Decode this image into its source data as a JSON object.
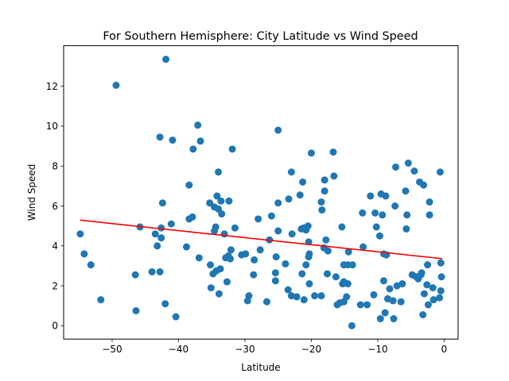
{
  "chart_data": {
    "type": "scatter",
    "title": "For Southern Hemisphere: City Latitude vs Wind Speed",
    "xlabel": "Latitude",
    "ylabel": "Wind Speed",
    "xlim": [
      -57.3,
      2.1
    ],
    "ylim": [
      -0.67,
      14.03
    ],
    "xticks": [
      -50,
      -40,
      -30,
      -20,
      -10,
      0
    ],
    "xtick_labels": [
      "−50",
      "−40",
      "−30",
      "−20",
      "−10",
      "0"
    ],
    "yticks": [
      0,
      2,
      4,
      6,
      8,
      10,
      12
    ],
    "ytick_labels": [
      "0",
      "2",
      "4",
      "6",
      "8",
      "10",
      "12"
    ],
    "grid": false,
    "colors": {
      "points": "#1f77b4",
      "regression": "#ff0000"
    },
    "regression": {
      "x": [
        -54.8,
        -0.3
      ],
      "y": [
        5.29,
        3.36
      ]
    },
    "points": [
      [
        -54.8,
        4.6
      ],
      [
        -54.2,
        3.6
      ],
      [
        -53.2,
        3.05
      ],
      [
        -51.7,
        1.3
      ],
      [
        -49.4,
        12.05
      ],
      [
        -46.5,
        2.55
      ],
      [
        -46.4,
        0.75
      ],
      [
        -45.8,
        4.95
      ],
      [
        -44,
        2.7
      ],
      [
        -43.5,
        4.6
      ],
      [
        -43.2,
        4
      ],
      [
        -42.8,
        2.7
      ],
      [
        -42.8,
        9.45
      ],
      [
        -42.6,
        4.9
      ],
      [
        -42.6,
        4.4
      ],
      [
        -42.4,
        6.15
      ],
      [
        -42,
        1.1
      ],
      [
        -41.9,
        13.35
      ],
      [
        -41.1,
        5.1
      ],
      [
        -40.9,
        9.3
      ],
      [
        -40.4,
        0.45
      ],
      [
        -38.8,
        3.95
      ],
      [
        -38.4,
        7.05
      ],
      [
        -38.4,
        5.35
      ],
      [
        -37.9,
        5.45
      ],
      [
        -37.8,
        8.85
      ],
      [
        -37.1,
        10.05
      ],
      [
        -36.9,
        3.4
      ],
      [
        -36.7,
        9.25
      ],
      [
        -35.3,
        6.15
      ],
      [
        -35.2,
        3.05
      ],
      [
        -35.1,
        1.9
      ],
      [
        -34.8,
        2.6
      ],
      [
        -34.6,
        5.95
      ],
      [
        -34.6,
        4.75
      ],
      [
        -34.4,
        4.95
      ],
      [
        -34.3,
        2.75
      ],
      [
        -34.2,
        6.5
      ],
      [
        -34,
        5.85
      ],
      [
        -34,
        7.7
      ],
      [
        -33.9,
        1.6
      ],
      [
        -33.7,
        2.85
      ],
      [
        -33.6,
        6.25
      ],
      [
        -33.5,
        5.6
      ],
      [
        -33.1,
        4.6
      ],
      [
        -32.9,
        3.4
      ],
      [
        -32.7,
        2.2
      ],
      [
        -32.5,
        3.5
      ],
      [
        -32.4,
        6.25
      ],
      [
        -32.2,
        3.35
      ],
      [
        -32.1,
        3.8
      ],
      [
        -31.9,
        8.85
      ],
      [
        -31.5,
        4.9
      ],
      [
        -30.5,
        3.55
      ],
      [
        -29.9,
        3.6
      ],
      [
        -29.6,
        1.25
      ],
      [
        -29.4,
        1.5
      ],
      [
        -28.6,
        3.3
      ],
      [
        -28.7,
        2.55
      ],
      [
        -28,
        5.35
      ],
      [
        -27.7,
        3.8
      ],
      [
        -26.7,
        1.2
      ],
      [
        -26.3,
        4.3
      ],
      [
        -26,
        5.5
      ],
      [
        -25.4,
        2.25
      ],
      [
        -25.4,
        2.65
      ],
      [
        -25.3,
        3.45
      ],
      [
        -25,
        6.15
      ],
      [
        -25,
        4.75
      ],
      [
        -25,
        9.8
      ],
      [
        -23.9,
        3.1
      ],
      [
        -23.5,
        1.8
      ],
      [
        -23.4,
        6.35
      ],
      [
        -23,
        1.5
      ],
      [
        -23,
        7.7
      ],
      [
        -22.9,
        4.6
      ],
      [
        -22.2,
        1.45
      ],
      [
        -21.7,
        6.55
      ],
      [
        -21.5,
        4.85
      ],
      [
        -21.4,
        2.6
      ],
      [
        -21.3,
        7.2
      ],
      [
        -21.1,
        4.9
      ],
      [
        -21.1,
        1.3
      ],
      [
        -20.8,
        3.05
      ],
      [
        -20.8,
        4.8
      ],
      [
        -20.5,
        5.0
      ],
      [
        -20.4,
        4.2
      ],
      [
        -20.4,
        3.45
      ],
      [
        -20.3,
        2.1
      ],
      [
        -20.3,
        3.6
      ],
      [
        -20,
        8.65
      ],
      [
        -19.5,
        1.5
      ],
      [
        -18.5,
        1.5
      ],
      [
        -18.5,
        6.2
      ],
      [
        -18.4,
        5.8
      ],
      [
        -18.1,
        3.9
      ],
      [
        -18,
        6.75
      ],
      [
        -18,
        7.3
      ],
      [
        -17.8,
        4.3
      ],
      [
        -17.6,
        2.6
      ],
      [
        -17.5,
        3.75
      ],
      [
        -16.7,
        8.7
      ],
      [
        -16.6,
        7.5
      ],
      [
        -16.3,
        2.45
      ],
      [
        -16.1,
        1.05
      ],
      [
        -15.7,
        1.15
      ],
      [
        -15.4,
        4.95
      ],
      [
        -15.3,
        2.1
      ],
      [
        -15.1,
        1.2
      ],
      [
        -15.1,
        2.2
      ],
      [
        -15.1,
        3.05
      ],
      [
        -14.7,
        1.45
      ],
      [
        -14.5,
        3.05
      ],
      [
        -14.5,
        2.1
      ],
      [
        -14.4,
        3.7
      ],
      [
        -13.9,
        0
      ],
      [
        -13.8,
        3.05
      ],
      [
        -12.6,
        1.05
      ],
      [
        -12.3,
        5.65
      ],
      [
        -12.2,
        3.95
      ],
      [
        -11.6,
        1.05
      ],
      [
        -11.1,
        6.5
      ],
      [
        -10.6,
        1.55
      ],
      [
        -10.4,
        5.65
      ],
      [
        -10.2,
        4.95
      ],
      [
        -9.7,
        4.5
      ],
      [
        -9.6,
        0.35
      ],
      [
        -9.5,
        6.6
      ],
      [
        -9.3,
        5.55
      ],
      [
        -9.1,
        2.25
      ],
      [
        -9.1,
        3.6
      ],
      [
        -8.9,
        0.65
      ],
      [
        -8.8,
        6.5
      ],
      [
        -8.7,
        3.55
      ],
      [
        -8.5,
        1.35
      ],
      [
        -8.2,
        1.85
      ],
      [
        -7.7,
        1.25
      ],
      [
        -7.6,
        0.35
      ],
      [
        -7.4,
        6
      ],
      [
        -7.3,
        7.95
      ],
      [
        -7.1,
        2
      ],
      [
        -6.5,
        1.2
      ],
      [
        -6.3,
        2.1
      ],
      [
        -5.8,
        6.75
      ],
      [
        -5.7,
        4.85
      ],
      [
        -5.6,
        5.55
      ],
      [
        -5.4,
        8.15
      ],
      [
        -4.8,
        2.55
      ],
      [
        -4.5,
        7.75
      ],
      [
        -4.2,
        2.45
      ],
      [
        -3.9,
        2.35
      ],
      [
        -3.7,
        7.2
      ],
      [
        -3.5,
        2.55
      ],
      [
        -3.4,
        2.65
      ],
      [
        -3.2,
        0.55
      ],
      [
        -3.1,
        7.05
      ],
      [
        -3,
        1.6
      ],
      [
        -2.6,
        2.05
      ],
      [
        -2.5,
        3.05
      ],
      [
        -2.4,
        1.05
      ],
      [
        -2.2,
        5.55
      ],
      [
        -2.2,
        6.2
      ],
      [
        -1.7,
        1.9
      ],
      [
        -1.6,
        1.3
      ],
      [
        -0.7,
        1.4
      ],
      [
        -0.6,
        7.7
      ],
      [
        -0.5,
        3.15
      ],
      [
        -0.5,
        1.75
      ],
      [
        -0.4,
        2.45
      ]
    ]
  }
}
